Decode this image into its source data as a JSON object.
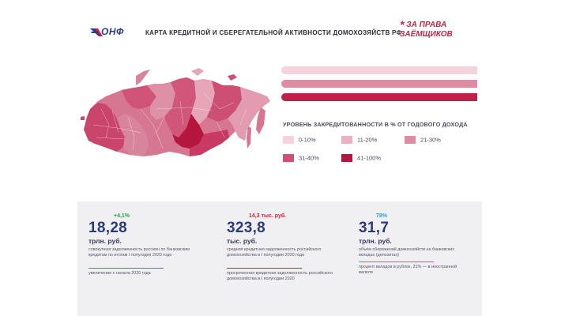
{
  "header": {
    "logo_text": "ОНФ",
    "title": "КАРТА КРЕДИТНОЙ И СБЕРЕГАТЕЛЬНОЙ АКТИВНОСТИ ДОМОХОЗЯЙСТВ РФ",
    "slogan_star": "*",
    "slogan_line1": "ЗА ПРАВА",
    "slogan_line2": "ЗАЁМЩИКОВ"
  },
  "legend": {
    "title": "УРОВЕНЬ ЗАКРЕДИТОВАННОСТИ В % ОТ ГОДОВОГО ДОХОДА",
    "items": [
      {
        "label": "0-10%",
        "color": "#f4d3dc"
      },
      {
        "label": "11-20%",
        "color": "#eab1c1"
      },
      {
        "label": "21-30%",
        "color": "#dc8ca3"
      },
      {
        "label": "31-40%",
        "color": "#cf5176"
      },
      {
        "label": "41-100%",
        "color": "#b5163e"
      }
    ]
  },
  "stats": [
    {
      "delta": "+4,1%",
      "delta_color": "#2e9e4f",
      "value": "18,28",
      "unit": "трлн. руб.",
      "desc": "совокупная задолженность россиян по банковским кредитам по итогам I полугодия 2020 года",
      "rule_color": "#2e9e4f",
      "note": "увеличение с начала 2020 года"
    },
    {
      "delta": "14,3 тыс. руб.",
      "delta_color": "#d02040",
      "value": "323,8",
      "unit": "тыс. руб.",
      "desc": "средняя кредитная задолженность российского домохозяйства в I полугодии 2020 года",
      "rule_color": "#d02040",
      "note": "просроченная кредитная задолженность российского домохозяйства в I полугодии 2020"
    },
    {
      "delta": "78%",
      "delta_color": "#2a9fd8",
      "value": "31,7",
      "unit": "трлн. руб.",
      "desc": "объём сбережений домохозяйств на банковских вкладах (депозитах)",
      "rule_color": "#2a9fd8",
      "note": "процент вкладов в рублях, 21% — в иностранной валюте"
    }
  ]
}
